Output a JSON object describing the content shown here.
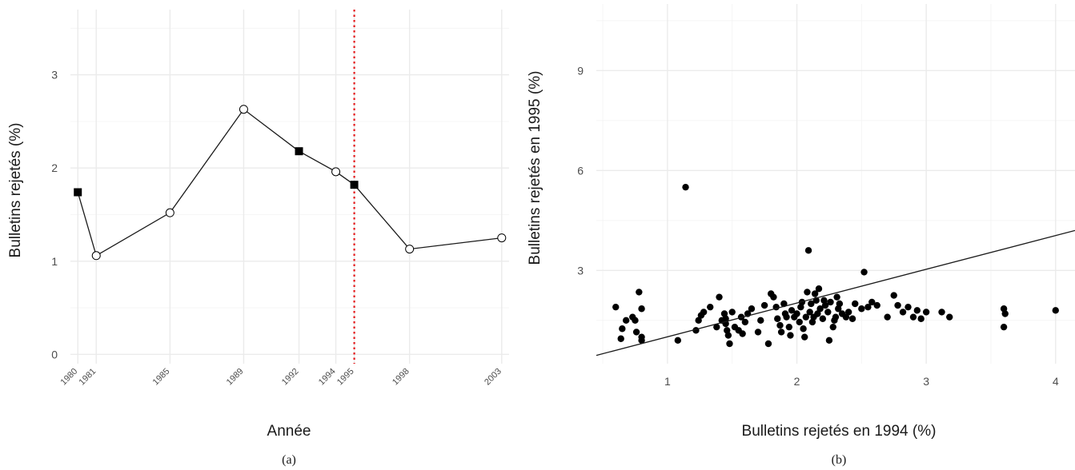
{
  "chart_data": [
    {
      "type": "line",
      "caption": "(a)",
      "xlabel": "Année",
      "ylabel": "Bulletins rejetés (%)",
      "x_ticks": [
        1980,
        1981,
        1985,
        1989,
        1992,
        1994,
        1995,
        1998,
        2003
      ],
      "y_ticks": [
        0,
        1,
        2,
        3
      ],
      "xlim": [
        1979.6,
        2003.4
      ],
      "ylim": [
        -0.1,
        3.7
      ],
      "series": [
        {
          "points": [
            {
              "x": 1980,
              "y": 1.74,
              "marker": "filled-square"
            },
            {
              "x": 1981,
              "y": 1.06,
              "marker": "open-circle"
            },
            {
              "x": 1985,
              "y": 1.52,
              "marker": "open-circle"
            },
            {
              "x": 1989,
              "y": 2.63,
              "marker": "open-circle"
            },
            {
              "x": 1992,
              "y": 2.18,
              "marker": "filled-square"
            },
            {
              "x": 1994,
              "y": 1.96,
              "marker": "open-circle"
            },
            {
              "x": 1995,
              "y": 1.82,
              "marker": "filled-square"
            },
            {
              "x": 1998,
              "y": 1.13,
              "marker": "open-circle"
            },
            {
              "x": 2003,
              "y": 1.25,
              "marker": "open-circle"
            }
          ]
        }
      ],
      "vline": {
        "x": 1995,
        "color": "#e41a1c",
        "style": "dotted"
      },
      "grid": true
    },
    {
      "type": "scatter",
      "caption": "(b)",
      "xlabel": "Bulletins rejetés en 1994 (%)",
      "ylabel": "Bulletins rejetés en 1995 (%)",
      "x_ticks": [
        1,
        2,
        3,
        4
      ],
      "y_ticks": [
        3,
        6,
        9
      ],
      "xlim": [
        0.45,
        4.15
      ],
      "ylim": [
        0.2,
        11.0
      ],
      "grid": true,
      "fit_line": {
        "x": [
          0.45,
          4.15
        ],
        "y": [
          0.45,
          4.2
        ]
      },
      "points": [
        [
          0.6,
          1.9
        ],
        [
          0.64,
          0.95
        ],
        [
          0.65,
          1.25
        ],
        [
          0.68,
          1.5
        ],
        [
          0.73,
          1.6
        ],
        [
          0.75,
          1.5
        ],
        [
          0.76,
          1.15
        ],
        [
          0.78,
          2.35
        ],
        [
          0.8,
          0.9
        ],
        [
          0.8,
          1.0
        ],
        [
          0.8,
          1.85
        ],
        [
          1.08,
          0.9
        ],
        [
          1.14,
          5.5
        ],
        [
          1.22,
          1.2
        ],
        [
          1.24,
          1.5
        ],
        [
          1.26,
          1.65
        ],
        [
          1.28,
          1.75
        ],
        [
          1.33,
          1.9
        ],
        [
          1.38,
          1.3
        ],
        [
          1.4,
          2.2
        ],
        [
          1.42,
          1.5
        ],
        [
          1.44,
          1.7
        ],
        [
          1.45,
          1.55
        ],
        [
          1.45,
          1.4
        ],
        [
          1.46,
          1.2
        ],
        [
          1.47,
          1.05
        ],
        [
          1.48,
          0.8
        ],
        [
          1.5,
          1.75
        ],
        [
          1.52,
          1.3
        ],
        [
          1.55,
          1.2
        ],
        [
          1.57,
          1.6
        ],
        [
          1.58,
          1.1
        ],
        [
          1.6,
          1.45
        ],
        [
          1.62,
          1.7
        ],
        [
          1.65,
          1.85
        ],
        [
          1.7,
          1.15
        ],
        [
          1.72,
          1.5
        ],
        [
          1.75,
          1.95
        ],
        [
          1.78,
          0.8
        ],
        [
          1.8,
          2.3
        ],
        [
          1.82,
          2.2
        ],
        [
          1.84,
          1.9
        ],
        [
          1.85,
          1.55
        ],
        [
          1.87,
          1.35
        ],
        [
          1.88,
          1.15
        ],
        [
          1.9,
          2.0
        ],
        [
          1.91,
          1.7
        ],
        [
          1.92,
          1.6
        ],
        [
          1.94,
          1.3
        ],
        [
          1.95,
          1.05
        ],
        [
          1.96,
          1.8
        ],
        [
          1.98,
          1.6
        ],
        [
          2.0,
          1.7
        ],
        [
          2.02,
          1.45
        ],
        [
          2.03,
          1.9
        ],
        [
          2.04,
          2.05
        ],
        [
          2.05,
          1.25
        ],
        [
          2.06,
          1.0
        ],
        [
          2.07,
          1.6
        ],
        [
          2.08,
          2.35
        ],
        [
          2.09,
          3.6
        ],
        [
          2.1,
          1.75
        ],
        [
          2.11,
          2.0
        ],
        [
          2.12,
          1.45
        ],
        [
          2.13,
          1.6
        ],
        [
          2.14,
          2.3
        ],
        [
          2.15,
          2.1
        ],
        [
          2.16,
          1.7
        ],
        [
          2.17,
          2.45
        ],
        [
          2.18,
          1.85
        ],
        [
          2.2,
          1.55
        ],
        [
          2.21,
          2.1
        ],
        [
          2.22,
          1.95
        ],
        [
          2.24,
          1.75
        ],
        [
          2.25,
          0.9
        ],
        [
          2.26,
          2.05
        ],
        [
          2.28,
          1.3
        ],
        [
          2.29,
          1.5
        ],
        [
          2.3,
          1.6
        ],
        [
          2.31,
          2.2
        ],
        [
          2.32,
          1.85
        ],
        [
          2.33,
          2.0
        ],
        [
          2.35,
          1.7
        ],
        [
          2.38,
          1.6
        ],
        [
          2.4,
          1.75
        ],
        [
          2.43,
          1.55
        ],
        [
          2.45,
          2.0
        ],
        [
          2.5,
          1.85
        ],
        [
          2.52,
          2.95
        ],
        [
          2.55,
          1.9
        ],
        [
          2.58,
          2.05
        ],
        [
          2.62,
          1.95
        ],
        [
          2.7,
          1.6
        ],
        [
          2.75,
          2.25
        ],
        [
          2.78,
          1.95
        ],
        [
          2.82,
          1.75
        ],
        [
          2.86,
          1.9
        ],
        [
          2.9,
          1.6
        ],
        [
          2.93,
          1.8
        ],
        [
          2.96,
          1.55
        ],
        [
          3.0,
          1.75
        ],
        [
          3.12,
          1.75
        ],
        [
          3.18,
          1.6
        ],
        [
          3.6,
          1.85
        ],
        [
          3.6,
          1.3
        ],
        [
          3.61,
          1.7
        ],
        [
          4.0,
          1.8
        ]
      ]
    }
  ]
}
